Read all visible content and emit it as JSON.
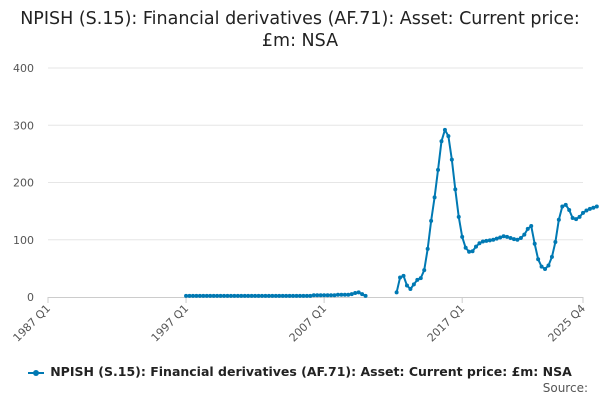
{
  "chart_data": {
    "type": "line",
    "title": "NPISH (S.15): Financial derivatives (AF.71): Asset: Current price: £m: NSA",
    "xlabel": "",
    "ylabel": "",
    "ylim": [
      0,
      400
    ],
    "y_ticks": [
      "0",
      "100",
      "200",
      "300",
      "400"
    ],
    "x_tick_labels": [
      "1987 Q1",
      "1997 Q1",
      "2007 Q1",
      "2017 Q1",
      "2025 Q4"
    ],
    "grid": true,
    "legend_position": "bottom",
    "color": "#0079b3",
    "series": [
      {
        "name": "NPISH (S.15): Financial derivatives (AF.71): Asset: Current price: £m: NSA",
        "segments": [
          [
            [
              "1997 Q1",
              2
            ],
            [
              "1997 Q2",
              2
            ],
            [
              "1997 Q3",
              2
            ],
            [
              "1997 Q4",
              2
            ],
            [
              "1998 Q1",
              2
            ],
            [
              "1998 Q2",
              2
            ],
            [
              "1998 Q3",
              2
            ],
            [
              "1998 Q4",
              2
            ],
            [
              "1999 Q1",
              2
            ],
            [
              "1999 Q2",
              2
            ],
            [
              "1999 Q3",
              2
            ],
            [
              "1999 Q4",
              2
            ],
            [
              "2000 Q1",
              2
            ],
            [
              "2000 Q2",
              2
            ],
            [
              "2000 Q3",
              2
            ],
            [
              "2000 Q4",
              2
            ],
            [
              "2001 Q1",
              2
            ],
            [
              "2001 Q2",
              2
            ],
            [
              "2001 Q3",
              2
            ],
            [
              "2001 Q4",
              2
            ],
            [
              "2002 Q1",
              2
            ],
            [
              "2002 Q2",
              2
            ],
            [
              "2002 Q3",
              2
            ],
            [
              "2002 Q4",
              2
            ],
            [
              "2003 Q1",
              2
            ],
            [
              "2003 Q2",
              2
            ],
            [
              "2003 Q3",
              2
            ],
            [
              "2003 Q4",
              2
            ],
            [
              "2004 Q1",
              2
            ],
            [
              "2004 Q2",
              2
            ],
            [
              "2004 Q3",
              2
            ],
            [
              "2004 Q4",
              2
            ],
            [
              "2005 Q1",
              2
            ],
            [
              "2005 Q2",
              2
            ],
            [
              "2005 Q3",
              2
            ],
            [
              "2005 Q4",
              2
            ],
            [
              "2006 Q1",
              2
            ],
            [
              "2006 Q2",
              3
            ],
            [
              "2006 Q3",
              3
            ],
            [
              "2006 Q4",
              3
            ],
            [
              "2007 Q1",
              3
            ],
            [
              "2007 Q2",
              3
            ],
            [
              "2007 Q3",
              3
            ],
            [
              "2007 Q4",
              3
            ],
            [
              "2008 Q1",
              4
            ],
            [
              "2008 Q2",
              4
            ],
            [
              "2008 Q3",
              4
            ],
            [
              "2008 Q4",
              4
            ],
            [
              "2009 Q1",
              5
            ],
            [
              "2009 Q2",
              7
            ],
            [
              "2009 Q3",
              8
            ],
            [
              "2009 Q4",
              5
            ],
            [
              "2010 Q1",
              2
            ]
          ],
          [
            [
              "2012 Q2",
              8
            ],
            [
              "2012 Q3",
              34
            ],
            [
              "2012 Q4",
              37
            ],
            [
              "2013 Q1",
              20
            ],
            [
              "2013 Q2",
              14
            ],
            [
              "2013 Q3",
              22
            ],
            [
              "2013 Q4",
              30
            ],
            [
              "2014 Q1",
              33
            ],
            [
              "2014 Q2",
              47
            ],
            [
              "2014 Q3",
              84
            ],
            [
              "2014 Q4",
              133
            ],
            [
              "2015 Q1",
              174
            ],
            [
              "2015 Q2",
              222
            ],
            [
              "2015 Q3",
              272
            ],
            [
              "2015 Q4",
              292
            ],
            [
              "2016 Q1",
              281
            ],
            [
              "2016 Q2",
              240
            ],
            [
              "2016 Q3",
              188
            ],
            [
              "2016 Q4",
              140
            ],
            [
              "2017 Q1",
              105
            ],
            [
              "2017 Q2",
              86
            ],
            [
              "2017 Q3",
              79
            ],
            [
              "2017 Q4",
              80
            ],
            [
              "2018 Q1",
              88
            ],
            [
              "2018 Q2",
              94
            ],
            [
              "2018 Q3",
              97
            ],
            [
              "2018 Q4",
              98
            ],
            [
              "2019 Q1",
              99
            ],
            [
              "2019 Q2",
              100
            ],
            [
              "2019 Q3",
              102
            ],
            [
              "2019 Q4",
              104
            ],
            [
              "2020 Q1",
              106
            ],
            [
              "2020 Q2",
              105
            ],
            [
              "2020 Q3",
              103
            ],
            [
              "2020 Q4",
              101
            ],
            [
              "2021 Q1",
              100
            ],
            [
              "2021 Q2",
              103
            ],
            [
              "2021 Q3",
              109
            ],
            [
              "2021 Q4",
              119
            ],
            [
              "2022 Q1",
              124
            ],
            [
              "2022 Q2",
              93
            ],
            [
              "2022 Q3",
              66
            ],
            [
              "2022 Q4",
              53
            ],
            [
              "2023 Q1",
              49
            ],
            [
              "2023 Q2",
              55
            ],
            [
              "2023 Q3",
              70
            ],
            [
              "2023 Q4",
              96
            ],
            [
              "2024 Q1",
              135
            ],
            [
              "2024 Q2",
              158
            ],
            [
              "2024 Q3",
              161
            ],
            [
              "2024 Q4",
              152
            ],
            [
              "2025 Q1",
              138
            ],
            [
              "2025 Q2",
              136
            ],
            [
              "2025 Q3",
              140
            ],
            [
              "2025 Q4",
              147
            ],
            [
              "2026 Q1",
              151
            ],
            [
              "2026 Q2",
              154
            ],
            [
              "2026 Q3",
              156
            ],
            [
              "2026 Q4",
              158
            ]
          ]
        ]
      }
    ]
  },
  "legend": {
    "label": "NPISH (S.15): Financial derivatives (AF.71): Asset: Current price: £m: NSA"
  },
  "source": {
    "label": "Source:"
  }
}
